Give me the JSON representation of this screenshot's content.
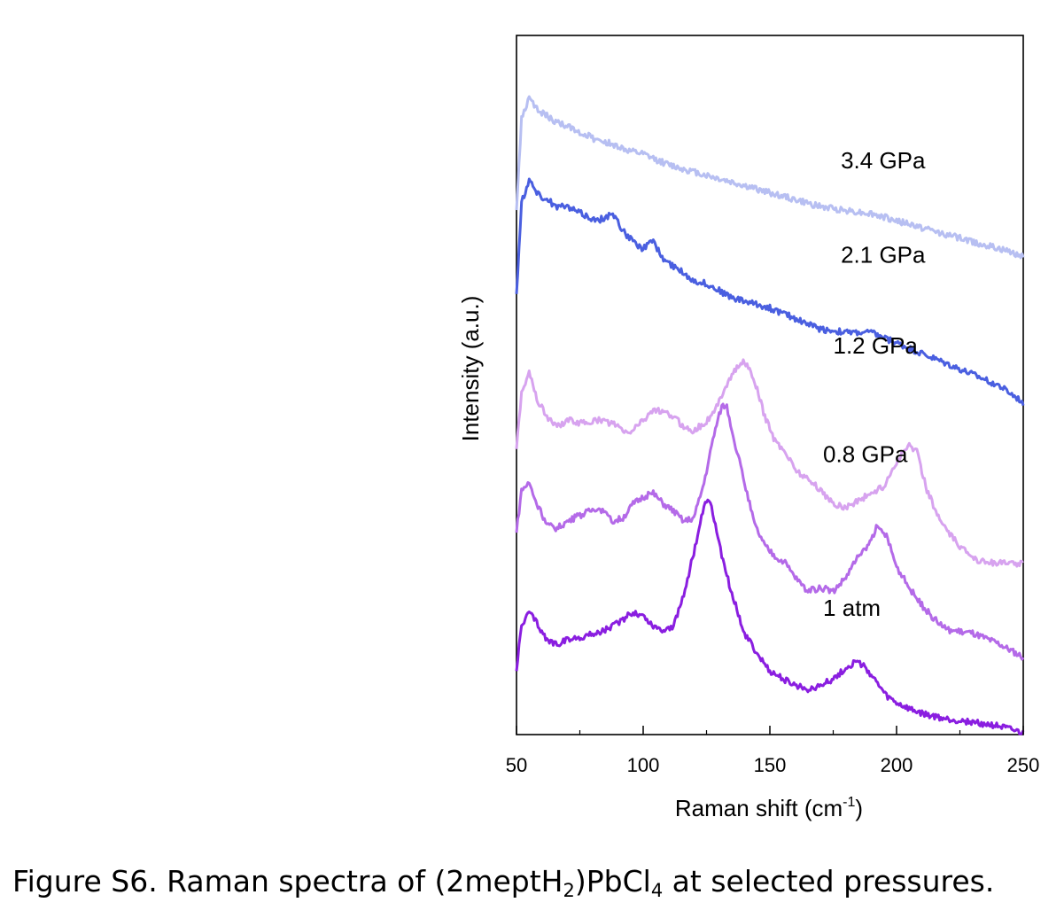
{
  "chart_data": {
    "type": "line",
    "title": "",
    "xlabel": "Raman shift (cm",
    "xlabel_sup": "-1",
    "xlabel_close": ")",
    "ylabel": "Intensity (a.u.)",
    "xlim": [
      50,
      250
    ],
    "ylim": [
      0,
      10
    ],
    "xticks": [
      "50",
      "100",
      "150",
      "200",
      "250"
    ],
    "grid": false,
    "legend": "inline labels to the right of each trace",
    "series": [
      {
        "name": "1 atm",
        "color": "#8a1ee0",
        "points": [
          [
            50,
            0.95
          ],
          [
            52,
            1.55
          ],
          [
            55,
            1.75
          ],
          [
            58,
            1.6
          ],
          [
            62,
            1.35
          ],
          [
            66,
            1.3
          ],
          [
            70,
            1.35
          ],
          [
            76,
            1.4
          ],
          [
            82,
            1.45
          ],
          [
            88,
            1.55
          ],
          [
            92,
            1.65
          ],
          [
            96,
            1.75
          ],
          [
            100,
            1.7
          ],
          [
            104,
            1.55
          ],
          [
            108,
            1.5
          ],
          [
            112,
            1.55
          ],
          [
            116,
            2.0
          ],
          [
            120,
            2.6
          ],
          [
            123,
            3.1
          ],
          [
            125,
            3.35
          ],
          [
            127,
            3.25
          ],
          [
            129,
            2.9
          ],
          [
            132,
            2.4
          ],
          [
            136,
            1.9
          ],
          [
            140,
            1.45
          ],
          [
            145,
            1.15
          ],
          [
            150,
            0.9
          ],
          [
            155,
            0.8
          ],
          [
            160,
            0.7
          ],
          [
            165,
            0.65
          ],
          [
            170,
            0.7
          ],
          [
            175,
            0.8
          ],
          [
            180,
            0.95
          ],
          [
            184,
            1.05
          ],
          [
            188,
            0.95
          ],
          [
            192,
            0.75
          ],
          [
            196,
            0.55
          ],
          [
            200,
            0.45
          ],
          [
            206,
            0.35
          ],
          [
            212,
            0.28
          ],
          [
            220,
            0.22
          ],
          [
            230,
            0.18
          ],
          [
            240,
            0.12
          ],
          [
            250,
            0.02
          ]
        ]
      },
      {
        "name": "0.8 GPa",
        "color": "#b46ae8",
        "points": [
          [
            50,
            2.9
          ],
          [
            52,
            3.5
          ],
          [
            55,
            3.6
          ],
          [
            58,
            3.3
          ],
          [
            62,
            3.0
          ],
          [
            66,
            2.95
          ],
          [
            70,
            3.05
          ],
          [
            76,
            3.15
          ],
          [
            82,
            3.25
          ],
          [
            88,
            3.05
          ],
          [
            92,
            3.1
          ],
          [
            96,
            3.3
          ],
          [
            100,
            3.4
          ],
          [
            104,
            3.45
          ],
          [
            108,
            3.3
          ],
          [
            112,
            3.2
          ],
          [
            116,
            3.05
          ],
          [
            120,
            3.1
          ],
          [
            124,
            3.6
          ],
          [
            128,
            4.3
          ],
          [
            131,
            4.7
          ],
          [
            133,
            4.7
          ],
          [
            136,
            4.2
          ],
          [
            140,
            3.6
          ],
          [
            144,
            3.0
          ],
          [
            148,
            2.7
          ],
          [
            152,
            2.55
          ],
          [
            156,
            2.45
          ],
          [
            160,
            2.25
          ],
          [
            165,
            2.05
          ],
          [
            170,
            2.1
          ],
          [
            175,
            2.05
          ],
          [
            180,
            2.25
          ],
          [
            184,
            2.5
          ],
          [
            188,
            2.65
          ],
          [
            192,
            2.95
          ],
          [
            196,
            2.85
          ],
          [
            200,
            2.4
          ],
          [
            205,
            2.1
          ],
          [
            210,
            1.85
          ],
          [
            215,
            1.65
          ],
          [
            220,
            1.5
          ],
          [
            230,
            1.45
          ],
          [
            240,
            1.3
          ],
          [
            250,
            1.1
          ]
        ]
      },
      {
        "name": "1.2 GPa",
        "color": "#d7a3ef",
        "points": [
          [
            50,
            4.1
          ],
          [
            52,
            4.9
          ],
          [
            55,
            5.2
          ],
          [
            58,
            4.8
          ],
          [
            62,
            4.55
          ],
          [
            66,
            4.4
          ],
          [
            70,
            4.5
          ],
          [
            76,
            4.45
          ],
          [
            82,
            4.5
          ],
          [
            88,
            4.45
          ],
          [
            94,
            4.3
          ],
          [
            100,
            4.5
          ],
          [
            104,
            4.65
          ],
          [
            108,
            4.6
          ],
          [
            112,
            4.55
          ],
          [
            116,
            4.4
          ],
          [
            120,
            4.35
          ],
          [
            124,
            4.45
          ],
          [
            128,
            4.6
          ],
          [
            132,
            4.95
          ],
          [
            136,
            5.2
          ],
          [
            140,
            5.35
          ],
          [
            144,
            5.05
          ],
          [
            148,
            4.55
          ],
          [
            152,
            4.2
          ],
          [
            156,
            4.05
          ],
          [
            160,
            3.8
          ],
          [
            165,
            3.65
          ],
          [
            170,
            3.5
          ],
          [
            175,
            3.3
          ],
          [
            180,
            3.25
          ],
          [
            185,
            3.35
          ],
          [
            190,
            3.45
          ],
          [
            195,
            3.55
          ],
          [
            200,
            3.9
          ],
          [
            205,
            4.15
          ],
          [
            208,
            4.05
          ],
          [
            212,
            3.5
          ],
          [
            216,
            3.15
          ],
          [
            220,
            2.9
          ],
          [
            226,
            2.65
          ],
          [
            232,
            2.5
          ],
          [
            240,
            2.45
          ],
          [
            250,
            2.45
          ]
        ]
      },
      {
        "name": "2.1 GPa",
        "color": "#4a5fe0",
        "points": [
          [
            50,
            6.3
          ],
          [
            52,
            7.6
          ],
          [
            55,
            7.95
          ],
          [
            58,
            7.75
          ],
          [
            62,
            7.65
          ],
          [
            66,
            7.55
          ],
          [
            70,
            7.55
          ],
          [
            76,
            7.45
          ],
          [
            82,
            7.35
          ],
          [
            88,
            7.45
          ],
          [
            92,
            7.2
          ],
          [
            96,
            7.05
          ],
          [
            100,
            6.95
          ],
          [
            104,
            7.05
          ],
          [
            108,
            6.8
          ],
          [
            112,
            6.7
          ],
          [
            116,
            6.6
          ],
          [
            120,
            6.5
          ],
          [
            125,
            6.45
          ],
          [
            130,
            6.35
          ],
          [
            135,
            6.25
          ],
          [
            140,
            6.2
          ],
          [
            150,
            6.1
          ],
          [
            160,
            5.95
          ],
          [
            170,
            5.8
          ],
          [
            180,
            5.75
          ],
          [
            190,
            5.75
          ],
          [
            200,
            5.6
          ],
          [
            210,
            5.45
          ],
          [
            220,
            5.3
          ],
          [
            230,
            5.15
          ],
          [
            240,
            5.0
          ],
          [
            250,
            4.75
          ]
        ]
      },
      {
        "name": "3.4 GPa",
        "color": "#b7bff2",
        "points": [
          [
            50,
            7.5
          ],
          [
            52,
            8.8
          ],
          [
            55,
            9.1
          ],
          [
            58,
            8.95
          ],
          [
            62,
            8.85
          ],
          [
            66,
            8.75
          ],
          [
            70,
            8.7
          ],
          [
            76,
            8.6
          ],
          [
            82,
            8.5
          ],
          [
            88,
            8.45
          ],
          [
            94,
            8.35
          ],
          [
            100,
            8.3
          ],
          [
            110,
            8.15
          ],
          [
            120,
            8.05
          ],
          [
            130,
            7.95
          ],
          [
            140,
            7.85
          ],
          [
            150,
            7.75
          ],
          [
            160,
            7.65
          ],
          [
            170,
            7.55
          ],
          [
            180,
            7.5
          ],
          [
            190,
            7.45
          ],
          [
            200,
            7.35
          ],
          [
            210,
            7.25
          ],
          [
            220,
            7.15
          ],
          [
            230,
            7.05
          ],
          [
            240,
            6.95
          ],
          [
            250,
            6.85
          ]
        ]
      }
    ],
    "annotations": [
      {
        "text": "3.4 GPa",
        "x": 178,
        "y": 8.1
      },
      {
        "text": "2.1 GPa",
        "x": 178,
        "y": 6.75
      },
      {
        "text": "1.2 GPa",
        "x": 175,
        "y": 5.45
      },
      {
        "text": "0.8 GPa",
        "x": 171,
        "y": 3.9
      },
      {
        "text": "1 atm",
        "x": 171,
        "y": 1.7
      }
    ]
  },
  "caption": {
    "prefix": "Figure S6. Raman spectra of (2meptH",
    "sub1": "2",
    "middle": ")PbCl",
    "sub2": "4",
    "suffix": " at selected pressures."
  }
}
